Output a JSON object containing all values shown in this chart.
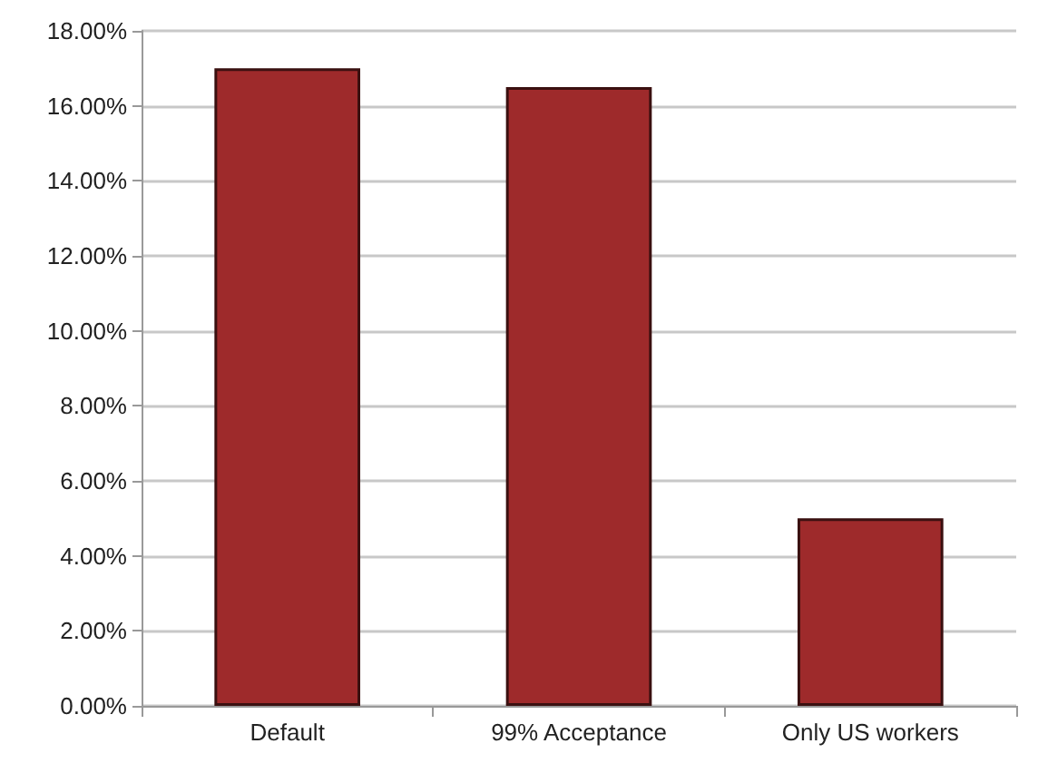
{
  "chart_data": {
    "type": "bar",
    "categories": [
      "Default",
      "99% Acceptance",
      "Only US workers"
    ],
    "values": [
      17.0,
      16.5,
      5.0
    ],
    "color": "#9e2a2b",
    "ylim": [
      0,
      18
    ],
    "yticks": [
      {
        "value": 0,
        "label": "0.00%"
      },
      {
        "value": 2,
        "label": "2.00%"
      },
      {
        "value": 4,
        "label": "4.00%"
      },
      {
        "value": 6,
        "label": "6.00%"
      },
      {
        "value": 8,
        "label": "8.00%"
      },
      {
        "value": 10,
        "label": "10.00%"
      },
      {
        "value": 12,
        "label": "12.00%"
      },
      {
        "value": 14,
        "label": "14.00%"
      },
      {
        "value": 16,
        "label": "16.00%"
      },
      {
        "value": 18,
        "label": "18.00%"
      }
    ],
    "grid": "y"
  }
}
